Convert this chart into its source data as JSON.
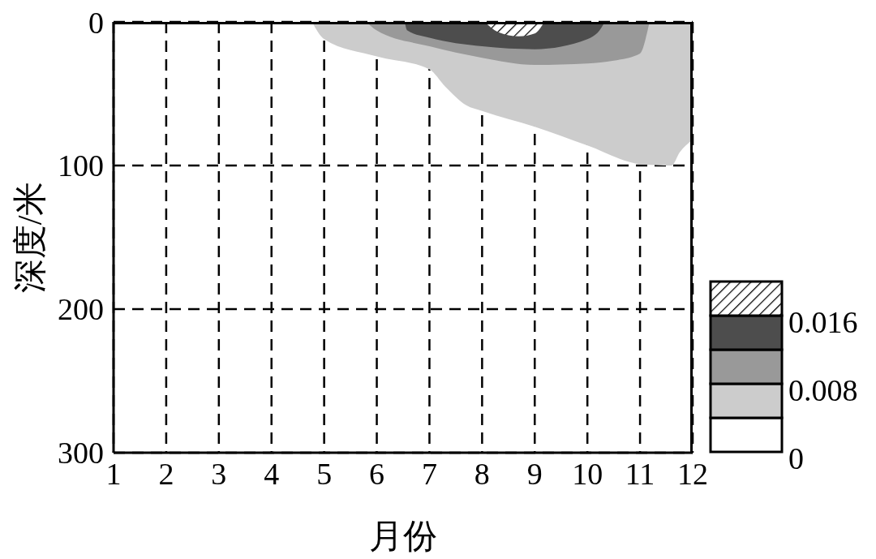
{
  "chart_data": {
    "type": "area",
    "xlabel": "月份",
    "ylabel": "深度/米",
    "xlim": [
      1,
      12
    ],
    "xticks": [
      1,
      2,
      3,
      4,
      5,
      6,
      7,
      8,
      9,
      10,
      11,
      12
    ],
    "ylim": [
      300,
      0
    ],
    "yticks": [
      0,
      100,
      200,
      300
    ],
    "grid": true,
    "legend": false,
    "line_style": "dashed",
    "annotations": [
      "0",
      "0.008",
      "0.016"
    ],
    "series": [
      {
        "color": "#cccccc",
        "x": [
          4.77,
          5,
          6,
          7,
          7.3,
          7.7,
          8,
          9,
          10,
          11,
          11.6,
          11.75,
          12
        ],
        "values": [
          0,
          12,
          24,
          33,
          45,
          58,
          62,
          73,
          86,
          99,
          100,
          91,
          82
        ]
      },
      {
        "color": "#999999",
        "x": [
          5.8,
          6,
          7,
          8,
          9,
          10,
          10.5,
          11,
          11.15,
          11.18
        ],
        "values": [
          0,
          6,
          17,
          25,
          30,
          29,
          27,
          22,
          5,
          0
        ]
      },
      {
        "color": "#4d4d4d",
        "x": [
          6.53,
          6.58,
          7,
          8,
          9,
          10,
          10.3,
          10.32
        ],
        "values": [
          0,
          6,
          11,
          17,
          19,
          12,
          2,
          0
        ]
      },
      {
        "color": "#000000",
        "x": [
          8.05,
          8.3,
          8.7,
          9,
          9.18
        ],
        "values": [
          0,
          7,
          10,
          8,
          0
        ]
      }
    ]
  }
}
